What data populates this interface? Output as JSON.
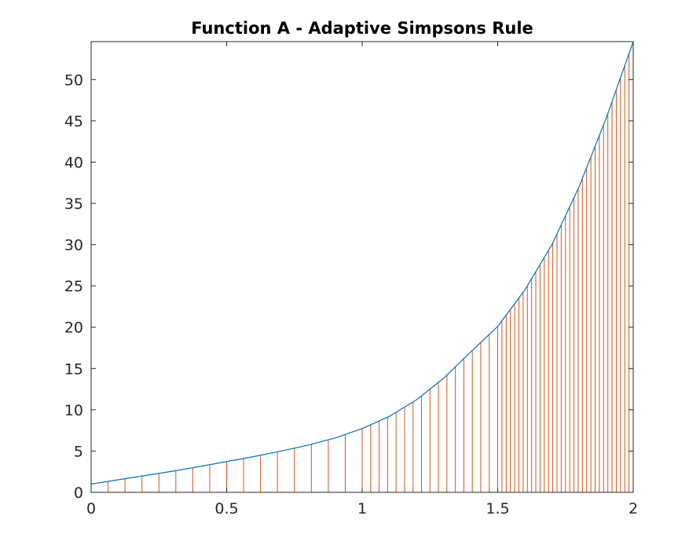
{
  "chart_data": {
    "type": "line",
    "title": "Function A - Adaptive Simpsons Rule",
    "xlabel": "",
    "ylabel": "",
    "xlim": [
      0,
      2
    ],
    "ylim": [
      0,
      54.6
    ],
    "x_ticks": [
      0,
      0.5,
      1,
      1.5,
      2
    ],
    "y_ticks": [
      0,
      5,
      10,
      15,
      20,
      25,
      30,
      35,
      40,
      45,
      50
    ],
    "x_tick_labels": [
      "0",
      "0.5",
      "1",
      "1.5",
      "2"
    ],
    "y_tick_labels": [
      "0",
      "5",
      "10",
      "15",
      "20",
      "25",
      "30",
      "35",
      "40",
      "45",
      "50"
    ],
    "grid": false,
    "series": [
      {
        "color": "#0072bd",
        "x": [
          0,
          0.1,
          0.2,
          0.3,
          0.4,
          0.5,
          0.6,
          0.7,
          0.8,
          0.9,
          1.0,
          1.1,
          1.2,
          1.3,
          1.4,
          1.5,
          1.6,
          1.7,
          1.8,
          1.9,
          2.0
        ],
        "y": [
          1.0,
          1.52,
          2.04,
          2.56,
          3.13,
          3.72,
          4.33,
          4.98,
          5.72,
          6.58,
          7.72,
          9.2,
          11.2,
          13.8,
          17.0,
          20.1,
          24.5,
          30.0,
          37.0,
          45.3,
          54.6
        ]
      }
    ],
    "partition_lines": {
      "color": "#d95319",
      "x": [
        0,
        0.0625,
        0.125,
        0.1875,
        0.25,
        0.3125,
        0.375,
        0.4375,
        0.5,
        0.5625,
        0.625,
        0.6875,
        0.75,
        0.8125,
        0.875,
        0.9375,
        1.0,
        1.0313,
        1.0625,
        1.0938,
        1.125,
        1.1563,
        1.1875,
        1.2188,
        1.25,
        1.2813,
        1.3125,
        1.3438,
        1.375,
        1.4063,
        1.4375,
        1.4688,
        1.5,
        1.5156,
        1.5313,
        1.5469,
        1.5625,
        1.5781,
        1.5938,
        1.6094,
        1.625,
        1.6406,
        1.6563,
        1.6719,
        1.6875,
        1.7031,
        1.7188,
        1.7344,
        1.75,
        1.7656,
        1.7813,
        1.7969,
        1.8125,
        1.8281,
        1.8438,
        1.8594,
        1.875,
        1.8906,
        1.9063,
        1.9219,
        1.9375,
        1.9531,
        1.9688,
        1.9844,
        2.0
      ]
    }
  }
}
